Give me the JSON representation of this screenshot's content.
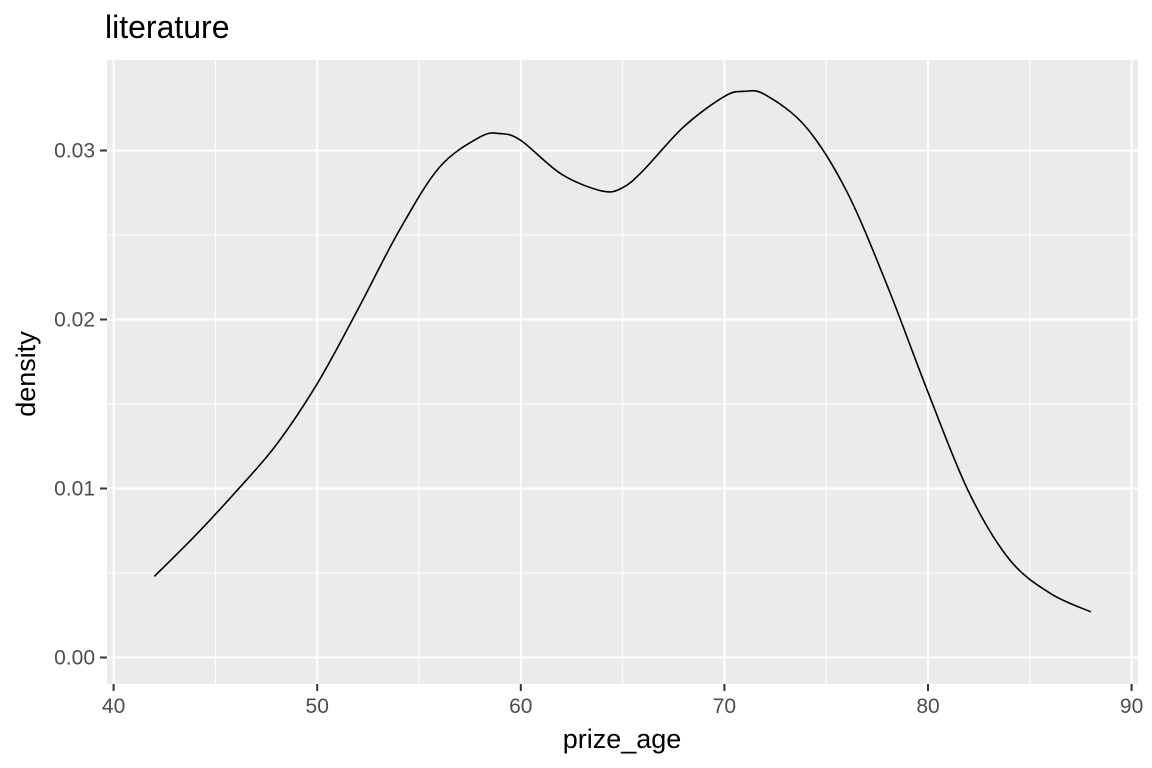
{
  "chart_data": {
    "type": "line",
    "title": "literature",
    "xlabel": "prize_age",
    "ylabel": "density",
    "xlim": [
      40,
      90
    ],
    "ylim": [
      0,
      0.035
    ],
    "x_ticks": [
      40,
      50,
      60,
      70,
      80,
      90
    ],
    "x_tick_labels": [
      "40",
      "50",
      "60",
      "70",
      "80",
      "90"
    ],
    "y_ticks": [
      0,
      0.01,
      0.02,
      0.03
    ],
    "y_tick_labels": [
      "0.00",
      "0.01",
      "0.02",
      "0.03"
    ],
    "x_minor_ticks": [
      45,
      55,
      65,
      75,
      85
    ],
    "y_minor_ticks": [
      0.005,
      0.015,
      0.025
    ],
    "grid": true,
    "legend": "none",
    "colors": {
      "panel": "#ebebeb",
      "grid": "#ffffff",
      "line": "#000000"
    },
    "series": [
      {
        "x": [
          42,
          44,
          46,
          48,
          50,
          52,
          54,
          56,
          58,
          59,
          60,
          62,
          64,
          65,
          66,
          68,
          70,
          71,
          72,
          74,
          76,
          78,
          80,
          82,
          84,
          86,
          88
        ],
        "y": [
          0.0048,
          0.0072,
          0.0098,
          0.0126,
          0.0162,
          0.0206,
          0.0252,
          0.029,
          0.0308,
          0.031,
          0.0306,
          0.0286,
          0.0276,
          0.0278,
          0.0288,
          0.0314,
          0.0332,
          0.0335,
          0.0333,
          0.0314,
          0.0276,
          0.022,
          0.0157,
          0.0098,
          0.0058,
          0.0038,
          0.0027
        ]
      }
    ]
  }
}
